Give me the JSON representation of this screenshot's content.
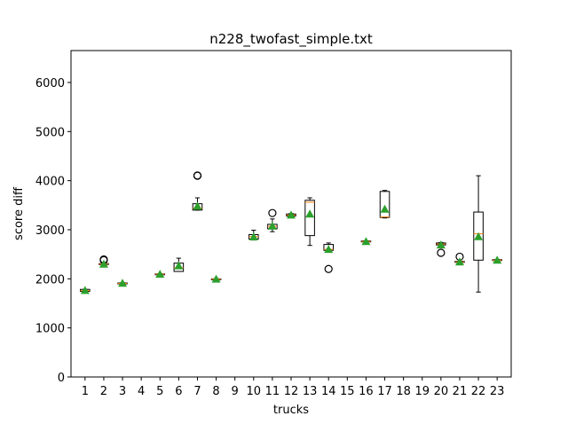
{
  "chart_data": {
    "type": "box",
    "title": "n228_twofast_simple.txt",
    "xlabel": "trucks",
    "ylabel": "score diff",
    "ylim": [
      0,
      6650
    ],
    "yticks": [
      0,
      1000,
      2000,
      3000,
      4000,
      5000,
      6000
    ],
    "categories": [
      "1",
      "2",
      "3",
      "4",
      "5",
      "6",
      "7",
      "8",
      "9",
      "10",
      "11",
      "12",
      "13",
      "14",
      "15",
      "16",
      "17",
      "18",
      "19",
      "20",
      "21",
      "22",
      "23"
    ],
    "grid": false,
    "legend": "none",
    "colors": {
      "box": "#000000",
      "median": "#ff7f0e",
      "mean": "#2ca02c",
      "flier": "#000000"
    },
    "boxes": [
      {
        "x": "1",
        "whislo": 1745,
        "q1": 1745,
        "med": 1760,
        "q3": 1785,
        "whishi": 1785,
        "mean": 1765,
        "fliers": []
      },
      {
        "x": "2",
        "whislo": 2290,
        "q1": 2290,
        "med": 2300,
        "q3": 2310,
        "whishi": 2310,
        "mean": 2300,
        "fliers": [
          2380,
          2395
        ]
      },
      {
        "x": "3",
        "whislo": 1895,
        "q1": 1900,
        "med": 1905,
        "q3": 1915,
        "whishi": 1920,
        "mean": 1910,
        "fliers": []
      },
      {
        "x": "4",
        "empty": true
      },
      {
        "x": "5",
        "whislo": 2085,
        "q1": 2090,
        "med": 2095,
        "q3": 2100,
        "whishi": 2105,
        "mean": 2095,
        "fliers": []
      },
      {
        "x": "6",
        "whislo": 2150,
        "q1": 2150,
        "med": 2225,
        "q3": 2320,
        "whishi": 2420,
        "mean": 2265,
        "fliers": []
      },
      {
        "x": "7",
        "whislo": 3400,
        "q1": 3400,
        "med": 3440,
        "q3": 3530,
        "whishi": 3650,
        "mean": 3480,
        "fliers": [
          4100,
          4105
        ]
      },
      {
        "x": "8",
        "whislo": 1985,
        "q1": 1990,
        "med": 1995,
        "q3": 2000,
        "whishi": 2000,
        "mean": 1995,
        "fliers": []
      },
      {
        "x": "9",
        "empty": true
      },
      {
        "x": "10",
        "whislo": 2790,
        "q1": 2810,
        "med": 2860,
        "q3": 2900,
        "whishi": 2990,
        "mean": 2855,
        "fliers": []
      },
      {
        "x": "11",
        "whislo": 2960,
        "q1": 3020,
        "med": 3070,
        "q3": 3110,
        "whishi": 3220,
        "mean": 3075,
        "fliers": [
          3340
        ]
      },
      {
        "x": "12",
        "whislo": 3270,
        "q1": 3280,
        "med": 3300,
        "q3": 3320,
        "whishi": 3330,
        "mean": 3300,
        "fliers": []
      },
      {
        "x": "13",
        "whislo": 2680,
        "q1": 2880,
        "med": 3560,
        "q3": 3600,
        "whishi": 3650,
        "mean": 3320,
        "fliers": []
      },
      {
        "x": "14",
        "whislo": 2580,
        "q1": 2580,
        "med": 2600,
        "q3": 2700,
        "whishi": 2730,
        "mean": 2600,
        "fliers": [
          2200
        ]
      },
      {
        "x": "15",
        "empty": true
      },
      {
        "x": "16",
        "whislo": 2750,
        "q1": 2755,
        "med": 2760,
        "q3": 2770,
        "whishi": 2775,
        "mean": 2760,
        "fliers": []
      },
      {
        "x": "17",
        "whislo": 3240,
        "q1": 3250,
        "med": 3260,
        "q3": 3780,
        "whishi": 3800,
        "mean": 3420,
        "fliers": []
      },
      {
        "x": "18",
        "empty": true
      },
      {
        "x": "19",
        "empty": true
      },
      {
        "x": "20",
        "whislo": 2680,
        "q1": 2690,
        "med": 2710,
        "q3": 2730,
        "whishi": 2740,
        "mean": 2690,
        "fliers": [
          2530
        ]
      },
      {
        "x": "21",
        "whislo": 2330,
        "q1": 2335,
        "med": 2345,
        "q3": 2355,
        "whishi": 2360,
        "mean": 2345,
        "fliers": [
          2450
        ]
      },
      {
        "x": "22",
        "whislo": 1730,
        "q1": 2380,
        "med": 2920,
        "q3": 3360,
        "whishi": 4100,
        "mean": 2860,
        "fliers": []
      },
      {
        "x": "23",
        "whislo": 2370,
        "q1": 2375,
        "med": 2380,
        "q3": 2390,
        "whishi": 2395,
        "mean": 2380,
        "fliers": []
      }
    ]
  }
}
